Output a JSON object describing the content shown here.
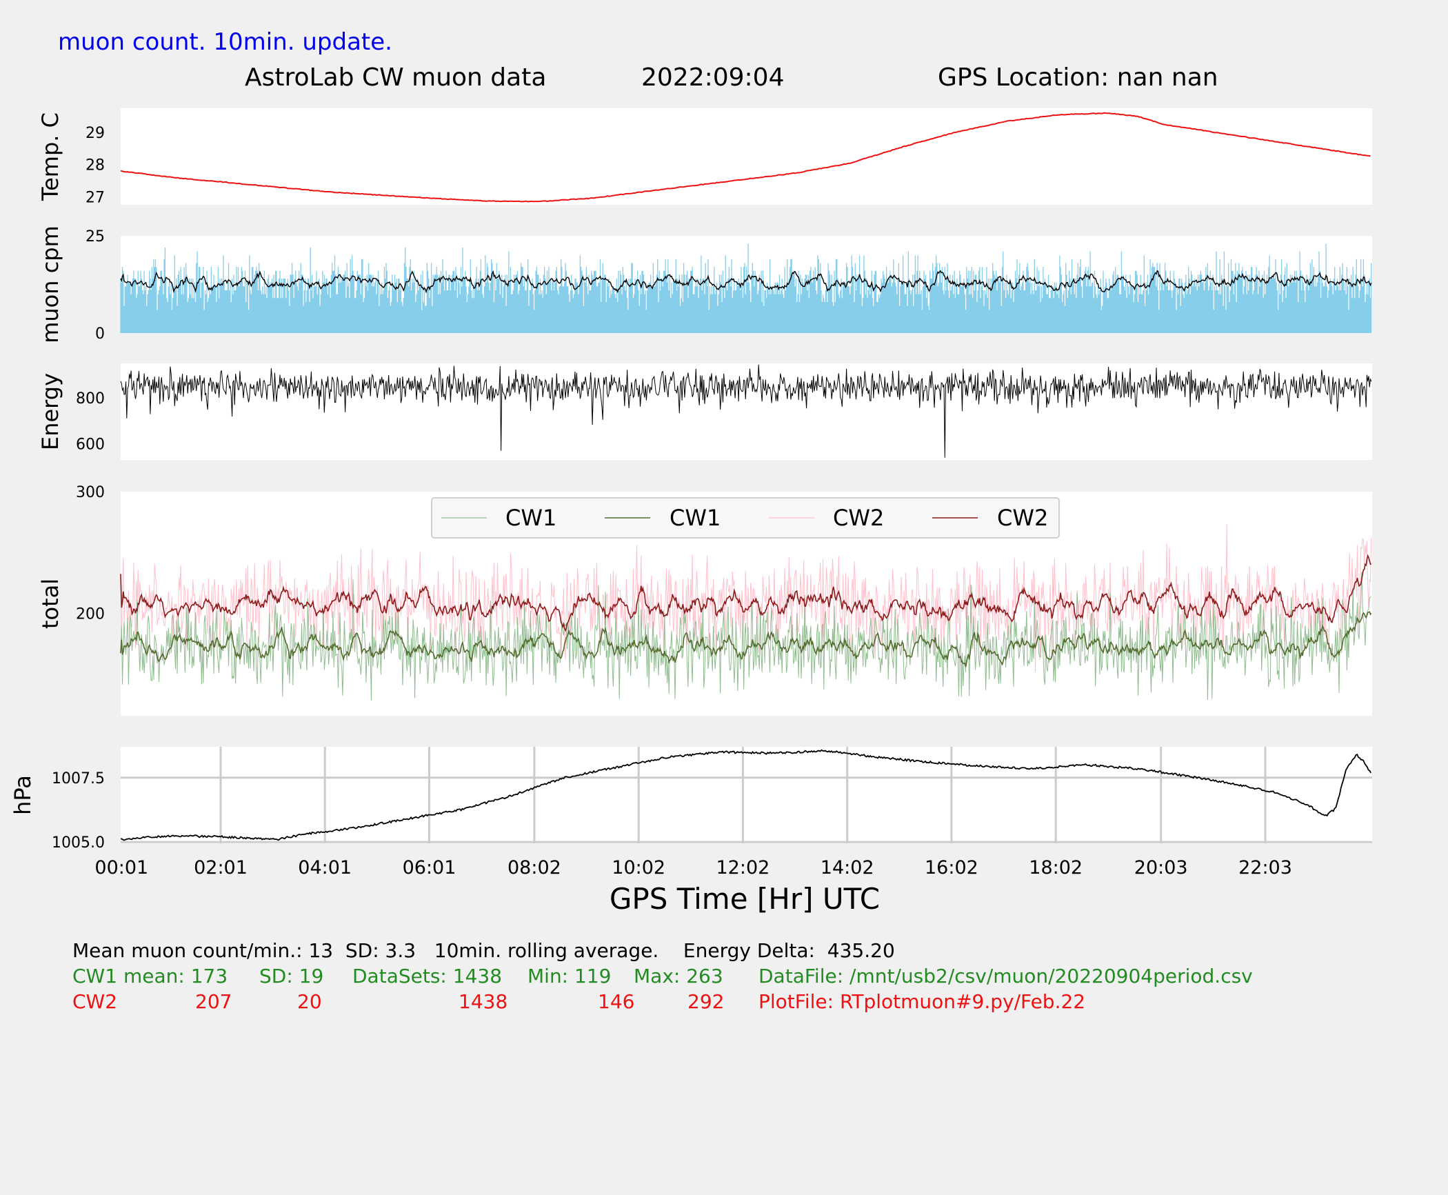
{
  "header": {
    "update_note": "muon count.  10min. update.",
    "title": "AstroLab CW muon data",
    "date": "2022:09:04",
    "gps_location": "GPS Location: nan   nan"
  },
  "colors": {
    "update_note": "#0000ee",
    "temp_line": "#ee1111",
    "muon_bars": "#87ceeb",
    "cw1_raw": "#8fbc8f",
    "cw1_avg": "#556b2f",
    "cw2_raw": "#ffc0cb",
    "cw2_avg": "#8b1a1a",
    "stats_cw1": "#228b22",
    "stats_cw2": "#ee1111"
  },
  "chart_data": [
    {
      "id": "temperature",
      "type": "line",
      "ylabel": "Temp. C",
      "yticks": [
        27,
        28,
        29
      ],
      "ylim": [
        26.75,
        29.75
      ],
      "x_hours": [
        0.0,
        1.0,
        2.0,
        3.0,
        4.0,
        5.0,
        6.0,
        7.0,
        8.0,
        9.0,
        10.0,
        11.0,
        12.0,
        13.0,
        14.0,
        15.0,
        16.0,
        17.0,
        18.0,
        18.9,
        19.5,
        20.0,
        21.0,
        22.0,
        23.0,
        24.0
      ],
      "values": [
        27.8,
        27.6,
        27.45,
        27.3,
        27.15,
        27.05,
        26.95,
        26.87,
        26.85,
        26.95,
        27.15,
        27.35,
        27.55,
        27.75,
        28.05,
        28.55,
        29.0,
        29.35,
        29.55,
        29.6,
        29.5,
        29.25,
        29.0,
        28.75,
        28.5,
        28.25
      ]
    },
    {
      "id": "muon_cpm",
      "type": "bar+line",
      "ylabel": "muon cpm",
      "yticks": [
        0,
        25
      ],
      "ylim": [
        0,
        25
      ],
      "series": [
        {
          "name": "counts per minute",
          "style": "bars",
          "samples": 1438,
          "mean": 13,
          "sd": 3.3
        },
        {
          "name": "10min. rolling average",
          "style": "line",
          "mean": 13
        }
      ]
    },
    {
      "id": "energy",
      "type": "line",
      "ylabel": "Energy",
      "yticks": [
        600,
        800
      ],
      "ylim": [
        530,
        950
      ],
      "mean": 850,
      "dips": [
        {
          "hour": 7.3,
          "value": 570
        },
        {
          "hour": 15.8,
          "value": 540
        }
      ]
    },
    {
      "id": "total",
      "type": "line",
      "ylabel": "total",
      "yticks": [
        200,
        300
      ],
      "ylim": [
        116,
        300
      ],
      "legend_position": "upper center",
      "series": [
        {
          "name": "CW1",
          "style": "raw",
          "mean": 173,
          "sd": 19,
          "min": 119,
          "max": 263
        },
        {
          "name": "CW1",
          "style": "rolling average",
          "mean": 173
        },
        {
          "name": "CW2",
          "style": "raw",
          "mean": 207,
          "sd": 20,
          "min": 146,
          "max": 292
        },
        {
          "name": "CW2",
          "style": "rolling average",
          "mean": 207
        }
      ]
    },
    {
      "id": "pressure",
      "type": "line",
      "ylabel": "hPa",
      "yticks": [
        1005.0,
        1007.5
      ],
      "yticklabels": [
        "1005.0",
        "1007.5"
      ],
      "ylim": [
        1004.95,
        1008.7
      ],
      "grid": true,
      "xlabel": "GPS Time  [Hr] UTC",
      "xticks": [
        "00:01",
        "02:01",
        "04:01",
        "06:01",
        "08:02",
        "10:02",
        "12:02",
        "14:02",
        "16:02",
        "18:02",
        "20:03",
        "22:03"
      ],
      "xtick_hours": [
        0.017,
        1.917,
        3.917,
        5.917,
        7.933,
        9.933,
        11.933,
        13.933,
        15.933,
        17.933,
        19.95,
        21.95
      ],
      "x_hours": [
        0.0,
        1.0,
        2.0,
        3.0,
        3.5,
        4.5,
        5.5,
        6.5,
        7.5,
        8.5,
        9.5,
        10.5,
        11.5,
        12.5,
        13.5,
        14.5,
        15.5,
        16.5,
        17.5,
        18.5,
        19.5,
        20.5,
        21.5,
        22.2,
        22.8,
        23.1,
        23.3,
        23.5,
        23.7,
        23.85,
        24.0
      ],
      "values": [
        1005.1,
        1005.25,
        1005.2,
        1005.1,
        1005.3,
        1005.55,
        1005.9,
        1006.25,
        1006.8,
        1007.5,
        1007.9,
        1008.3,
        1008.5,
        1008.45,
        1008.55,
        1008.3,
        1008.1,
        1007.95,
        1007.85,
        1008.0,
        1007.85,
        1007.55,
        1007.2,
        1006.9,
        1006.4,
        1006.0,
        1006.3,
        1007.8,
        1008.4,
        1008.1,
        1007.6
      ]
    }
  ],
  "footer": {
    "line1": "Mean muon count/min.: 13  SD: 3.3   10min. rolling average.    Energy Delta:  435.20",
    "cw1": {
      "label": "CW1 mean: 173",
      "sd": "SD: 19",
      "datasets": "DataSets: 1438",
      "min": "Min: 119",
      "max": "Max: 263",
      "file": "DataFile: /mnt/usb2/csv/muon/20220904period.csv"
    },
    "cw2": {
      "label": "CW2",
      "mean": "207",
      "sd": "20",
      "datasets": "1438",
      "min": "146",
      "max": "292",
      "file": "PlotFile: RTplotmuon#9.py/Feb.22"
    }
  }
}
